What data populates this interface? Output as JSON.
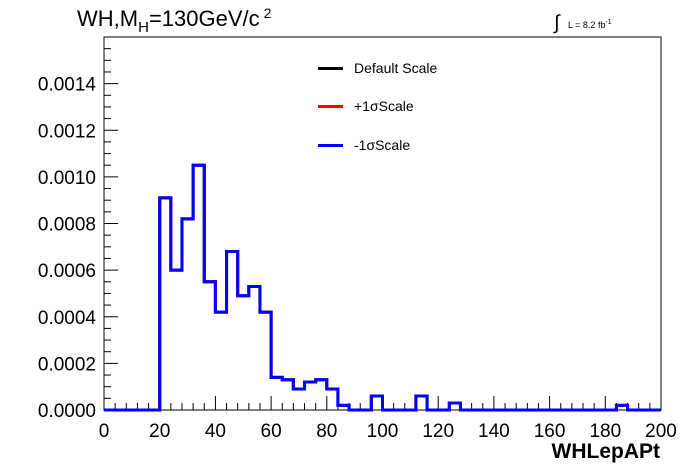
{
  "title": {
    "main": "WH,M",
    "sub": "H",
    "rest": "=130GeV/c",
    "sup": "2"
  },
  "lumi": {
    "symbol": "∫",
    "text": "L = 8.2 fb",
    "sup": "-1"
  },
  "chart_data": {
    "type": "line",
    "xlabel": "WHLepAPt",
    "ylabel": "",
    "xlim": [
      0,
      200
    ],
    "ylim": [
      0,
      0.0016
    ],
    "x_ticks": [
      "0",
      "20",
      "40",
      "60",
      "80",
      "100",
      "120",
      "140",
      "160",
      "180",
      "200"
    ],
    "y_ticks": [
      "0.0000",
      "0.0002",
      "0.0004",
      "0.0006",
      "0.0008",
      "0.0010",
      "0.0012",
      "0.0014"
    ],
    "bin_edges": [
      0,
      4,
      8,
      12,
      16,
      20,
      24,
      28,
      32,
      36,
      40,
      44,
      48,
      52,
      56,
      60,
      64,
      68,
      72,
      76,
      80,
      84,
      88,
      92,
      96,
      100,
      104,
      108,
      112,
      116,
      120,
      124,
      128,
      132,
      136,
      140,
      144,
      148,
      152,
      156,
      160,
      164,
      168,
      172,
      176,
      180,
      184,
      188,
      192,
      196,
      200
    ],
    "series": [
      {
        "name": "Default Scale",
        "color": "#000000",
        "values": [
          0,
          0,
          0,
          0,
          0,
          0.00091,
          0.0006,
          0.00082,
          0.00105,
          0.00055,
          0.00042,
          0.00068,
          0.00049,
          0.00053,
          0.00042,
          0.00014,
          0.00013,
          9e-05,
          0.00012,
          0.00013,
          9e-05,
          2e-05,
          0,
          0,
          6e-05,
          0,
          0,
          0,
          6e-05,
          0,
          0,
          3e-05,
          0,
          0,
          0,
          0,
          0,
          0,
          0,
          0,
          0,
          0,
          0,
          0,
          0,
          0,
          2e-05,
          0,
          0,
          0
        ]
      },
      {
        "name": "+1σScale",
        "color": "#ff0000",
        "values": [
          0,
          0,
          0,
          0,
          0,
          0.00091,
          0.0006,
          0.00082,
          0.00105,
          0.00055,
          0.00042,
          0.00068,
          0.00049,
          0.00053,
          0.00042,
          0.00014,
          0.00013,
          9e-05,
          0.00012,
          0.00013,
          9e-05,
          2e-05,
          0,
          0,
          6e-05,
          0,
          0,
          0,
          6e-05,
          0,
          0,
          3e-05,
          0,
          0,
          0,
          0,
          0,
          0,
          0,
          0,
          0,
          0,
          0,
          0,
          0,
          0,
          2e-05,
          0,
          0,
          0
        ]
      },
      {
        "name": "-1σScale",
        "color": "#0000ff",
        "values": [
          0,
          0,
          0,
          0,
          0,
          0.00091,
          0.0006,
          0.00082,
          0.00105,
          0.00055,
          0.00042,
          0.00068,
          0.00049,
          0.00053,
          0.00042,
          0.00014,
          0.00013,
          9e-05,
          0.00012,
          0.00013,
          9e-05,
          2e-05,
          0,
          0,
          6e-05,
          0,
          0,
          0,
          6e-05,
          0,
          0,
          3e-05,
          0,
          0,
          0,
          0,
          0,
          0,
          0,
          0,
          0,
          0,
          0,
          0,
          0,
          0,
          2e-05,
          0,
          0,
          0
        ]
      }
    ]
  }
}
